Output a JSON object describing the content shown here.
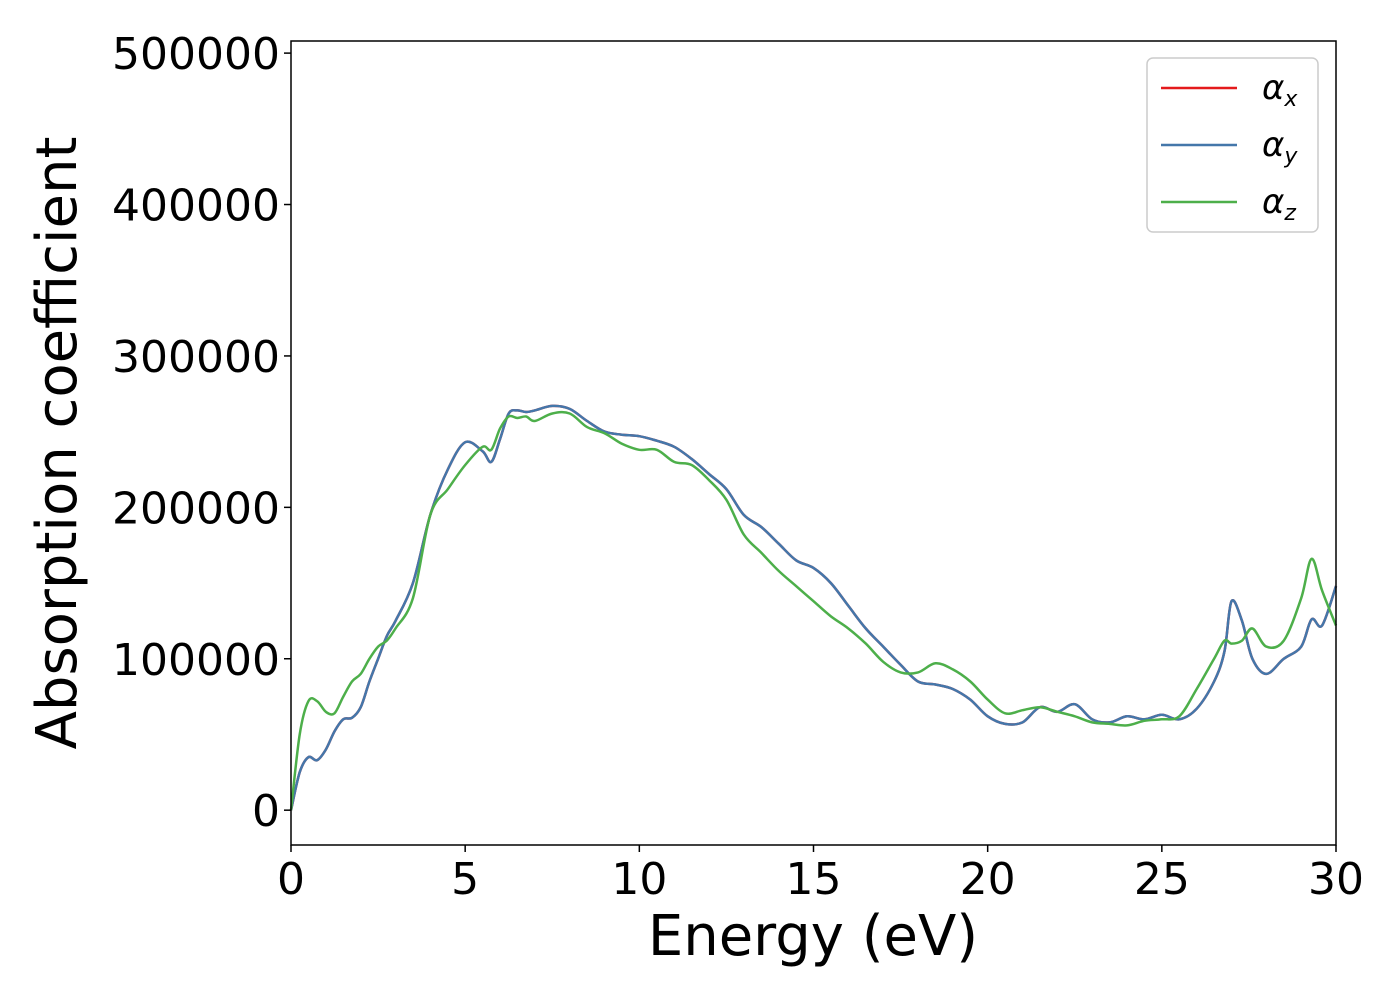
{
  "chart_data": {
    "type": "line",
    "xlabel": "Energy (eV)",
    "ylabel": "Absorption coefficient",
    "xlim": [
      0,
      30
    ],
    "ylim": [
      -23000,
      508000
    ],
    "xticks": [
      0,
      5,
      10,
      15,
      20,
      25,
      30
    ],
    "yticks": [
      0,
      100000,
      200000,
      300000,
      400000,
      500000
    ],
    "grid": false,
    "legend_position": "top-right",
    "series": [
      {
        "name": "α",
        "subscript": "x",
        "color": "#e41a1c",
        "x": [
          0,
          0.25,
          0.5,
          0.75,
          1.0,
          1.25,
          1.5,
          1.75,
          2.0,
          2.25,
          2.5,
          2.75,
          3.0,
          3.5,
          4.0,
          4.5,
          5.0,
          5.5,
          5.75,
          6.0,
          6.25,
          6.5,
          6.75,
          7.0,
          7.5,
          8.0,
          8.5,
          9.0,
          9.5,
          10.0,
          10.5,
          11.0,
          11.5,
          12.0,
          12.5,
          13.0,
          13.5,
          14.0,
          14.5,
          15.0,
          15.5,
          16.0,
          16.5,
          17.0,
          17.5,
          18.0,
          18.5,
          19.0,
          19.5,
          20.0,
          20.5,
          21.0,
          21.5,
          22.0,
          22.5,
          23.0,
          23.5,
          24.0,
          24.5,
          25.0,
          25.5,
          26.0,
          26.5,
          26.8,
          27.0,
          27.3,
          27.6,
          28.0,
          28.5,
          29.0,
          29.3,
          29.6,
          30.0
        ],
        "y": [
          0,
          25000,
          35000,
          33000,
          40000,
          52000,
          60000,
          61000,
          68000,
          85000,
          100000,
          115000,
          125000,
          150000,
          195000,
          225000,
          243000,
          237000,
          230000,
          245000,
          262000,
          264000,
          263000,
          264000,
          267000,
          265000,
          257000,
          250000,
          248000,
          247000,
          244000,
          240000,
          232000,
          222000,
          212000,
          195000,
          187000,
          176000,
          165000,
          160000,
          150000,
          135000,
          120000,
          108000,
          96000,
          85000,
          83000,
          80000,
          73000,
          62000,
          57000,
          58000,
          68000,
          65000,
          70000,
          60000,
          58000,
          62000,
          60000,
          63000,
          60000,
          67000,
          85000,
          105000,
          138000,
          125000,
          100000,
          90000,
          100000,
          108000,
          126000,
          122000,
          148000
        ]
      },
      {
        "name": "α",
        "subscript": "y",
        "color": "#4477aa",
        "x": [
          0,
          0.25,
          0.5,
          0.75,
          1.0,
          1.25,
          1.5,
          1.75,
          2.0,
          2.25,
          2.5,
          2.75,
          3.0,
          3.5,
          4.0,
          4.5,
          5.0,
          5.5,
          5.75,
          6.0,
          6.25,
          6.5,
          6.75,
          7.0,
          7.5,
          8.0,
          8.5,
          9.0,
          9.5,
          10.0,
          10.5,
          11.0,
          11.5,
          12.0,
          12.5,
          13.0,
          13.5,
          14.0,
          14.5,
          15.0,
          15.5,
          16.0,
          16.5,
          17.0,
          17.5,
          18.0,
          18.5,
          19.0,
          19.5,
          20.0,
          20.5,
          21.0,
          21.5,
          22.0,
          22.5,
          23.0,
          23.5,
          24.0,
          24.5,
          25.0,
          25.5,
          26.0,
          26.5,
          26.8,
          27.0,
          27.3,
          27.6,
          28.0,
          28.5,
          29.0,
          29.3,
          29.6,
          30.0
        ],
        "y": [
          0,
          25000,
          35000,
          33000,
          40000,
          52000,
          60000,
          61000,
          68000,
          85000,
          100000,
          115000,
          125000,
          150000,
          195000,
          225000,
          243000,
          237000,
          230000,
          245000,
          262000,
          264000,
          263000,
          264000,
          267000,
          265000,
          257000,
          250000,
          248000,
          247000,
          244000,
          240000,
          232000,
          222000,
          212000,
          195000,
          187000,
          176000,
          165000,
          160000,
          150000,
          135000,
          120000,
          108000,
          96000,
          85000,
          83000,
          80000,
          73000,
          62000,
          57000,
          58000,
          68000,
          65000,
          70000,
          60000,
          58000,
          62000,
          60000,
          63000,
          60000,
          67000,
          85000,
          105000,
          138000,
          125000,
          100000,
          90000,
          100000,
          108000,
          126000,
          122000,
          148000
        ]
      },
      {
        "name": "α",
        "subscript": "z",
        "color": "#4daf4a",
        "x": [
          0,
          0.25,
          0.5,
          0.75,
          1.0,
          1.25,
          1.5,
          1.75,
          2.0,
          2.25,
          2.5,
          2.75,
          3.0,
          3.5,
          4.0,
          4.5,
          5.0,
          5.5,
          5.75,
          6.0,
          6.25,
          6.5,
          6.75,
          7.0,
          7.5,
          8.0,
          8.5,
          9.0,
          9.5,
          10.0,
          10.5,
          11.0,
          11.5,
          12.0,
          12.5,
          13.0,
          13.5,
          14.0,
          14.5,
          15.0,
          15.5,
          16.0,
          16.5,
          17.0,
          17.5,
          18.0,
          18.5,
          19.0,
          19.5,
          20.0,
          20.5,
          21.0,
          21.5,
          22.0,
          22.5,
          23.0,
          23.5,
          24.0,
          24.5,
          25.0,
          25.5,
          26.0,
          26.5,
          26.8,
          27.0,
          27.3,
          27.6,
          28.0,
          28.5,
          29.0,
          29.3,
          29.6,
          30.0
        ],
        "y": [
          0,
          50000,
          72000,
          72000,
          65000,
          64000,
          75000,
          85000,
          90000,
          100000,
          108000,
          112000,
          120000,
          140000,
          195000,
          212000,
          228000,
          240000,
          238000,
          252000,
          260000,
          259000,
          260000,
          257000,
          262000,
          262000,
          253000,
          249000,
          242000,
          238000,
          238000,
          230000,
          228000,
          218000,
          205000,
          182000,
          170000,
          158000,
          148000,
          138000,
          128000,
          120000,
          110000,
          98000,
          91000,
          91000,
          97000,
          93000,
          85000,
          73000,
          64000,
          66000,
          68000,
          65000,
          62000,
          58000,
          57000,
          56000,
          59000,
          60000,
          62000,
          80000,
          100000,
          112000,
          110000,
          112000,
          120000,
          108000,
          112000,
          140000,
          166000,
          145000,
          122000
        ]
      }
    ]
  }
}
